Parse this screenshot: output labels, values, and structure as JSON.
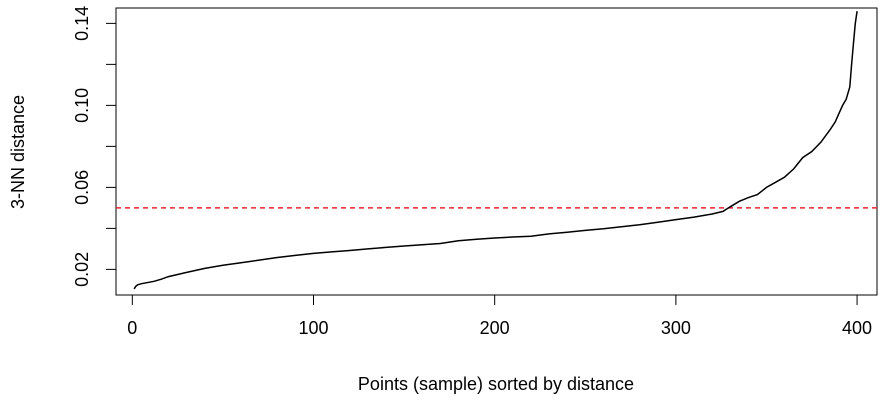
{
  "chart_data": {
    "type": "line",
    "title": "",
    "xlabel": "Points (sample) sorted by distance",
    "ylabel": "3-NN distance",
    "xlim": [
      -9,
      411
    ],
    "ylim": [
      0.0075,
      0.1475
    ],
    "x_ticks": [
      0,
      100,
      200,
      300,
      400
    ],
    "y_ticks": [
      0.02,
      0.06,
      0.1,
      0.14
    ],
    "y_minor_ticks": [
      0.04,
      0.08,
      0.12
    ],
    "x_tick_labels": [
      "0",
      "100",
      "200",
      "300",
      "400"
    ],
    "y_tick_labels": [
      "0.02",
      "0.06",
      "0.10",
      "0.14"
    ],
    "grid": false,
    "series": [
      {
        "color": "#000000",
        "style": "solid",
        "points": [
          [
            1,
            0.0105
          ],
          [
            2,
            0.0118
          ],
          [
            3,
            0.0125
          ],
          [
            5,
            0.013
          ],
          [
            8,
            0.0135
          ],
          [
            12,
            0.0142
          ],
          [
            16,
            0.0152
          ],
          [
            20,
            0.0165
          ],
          [
            25,
            0.0175
          ],
          [
            30,
            0.0185
          ],
          [
            40,
            0.0205
          ],
          [
            50,
            0.022
          ],
          [
            60,
            0.0232
          ],
          [
            70,
            0.0245
          ],
          [
            80,
            0.0258
          ],
          [
            90,
            0.0268
          ],
          [
            100,
            0.0278
          ],
          [
            110,
            0.0285
          ],
          [
            120,
            0.0292
          ],
          [
            130,
            0.03
          ],
          [
            140,
            0.0307
          ],
          [
            150,
            0.0314
          ],
          [
            160,
            0.032
          ],
          [
            170,
            0.0326
          ],
          [
            180,
            0.034
          ],
          [
            190,
            0.0347
          ],
          [
            200,
            0.0353
          ],
          [
            210,
            0.0358
          ],
          [
            220,
            0.0362
          ],
          [
            230,
            0.0373
          ],
          [
            240,
            0.0381
          ],
          [
            250,
            0.039
          ],
          [
            260,
            0.0398
          ],
          [
            270,
            0.0408
          ],
          [
            280,
            0.0418
          ],
          [
            290,
            0.043
          ],
          [
            300,
            0.0443
          ],
          [
            310,
            0.0455
          ],
          [
            320,
            0.047
          ],
          [
            326,
            0.0483
          ],
          [
            330,
            0.0505
          ],
          [
            335,
            0.0532
          ],
          [
            340,
            0.055
          ],
          [
            345,
            0.0565
          ],
          [
            350,
            0.06
          ],
          [
            355,
            0.0625
          ],
          [
            360,
            0.065
          ],
          [
            365,
            0.069
          ],
          [
            370,
            0.0745
          ],
          [
            375,
            0.0775
          ],
          [
            380,
            0.082
          ],
          [
            385,
            0.088
          ],
          [
            388,
            0.092
          ],
          [
            390,
            0.096
          ],
          [
            392,
            0.1
          ],
          [
            394,
            0.103
          ],
          [
            396,
            0.109
          ],
          [
            397,
            0.12
          ],
          [
            398,
            0.13
          ],
          [
            399,
            0.14
          ],
          [
            400,
            0.146
          ]
        ]
      }
    ],
    "reference_line": {
      "y": 0.05,
      "color": "#e8262c",
      "style": "dashed"
    }
  }
}
